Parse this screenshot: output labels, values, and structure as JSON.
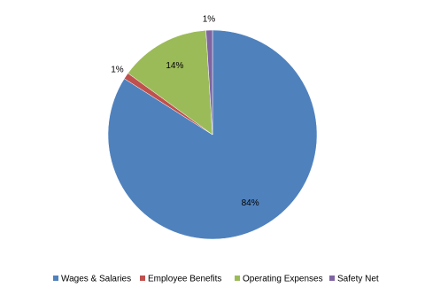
{
  "chart_data": {
    "type": "pie",
    "categories": [
      "Wages & Salaries",
      "Employee Benefits",
      "Operating Expenses",
      "Safety Net"
    ],
    "values": [
      84,
      1,
      14,
      1
    ],
    "value_labels": [
      "84%",
      "1%",
      "14%",
      "1%"
    ],
    "colors": [
      "#4f81bd",
      "#c0504d",
      "#9bbb59",
      "#8064a2"
    ],
    "legend": "bottom"
  }
}
